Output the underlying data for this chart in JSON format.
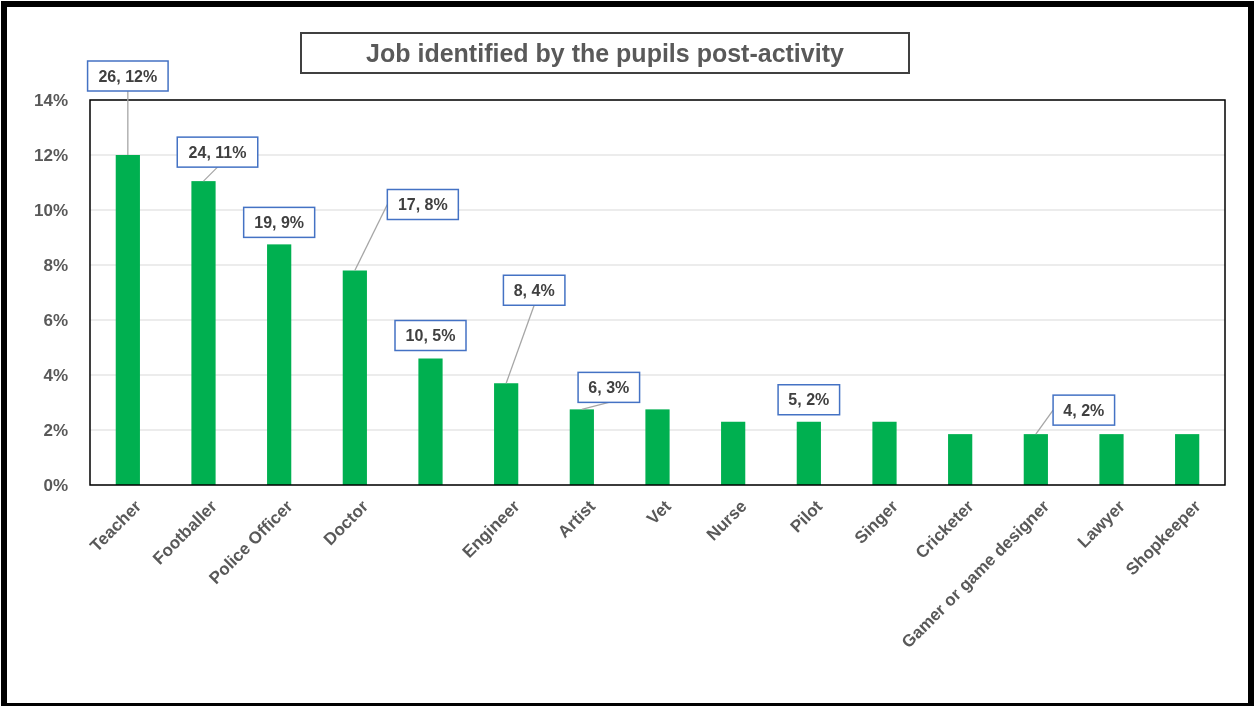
{
  "chart_data": {
    "type": "bar",
    "title": "Job identified by the pupils post-activity",
    "categories": [
      "Teacher",
      "Footballer",
      "Police Officer",
      "Doctor",
      null,
      "Engineer",
      "Artist",
      "Vet",
      "Nurse",
      "Pilot",
      "Singer",
      "Cricketer",
      "Gamer or game designer",
      "Lawyer",
      "Shopkeeper"
    ],
    "values": [
      12.0,
      11.05,
      8.75,
      7.8,
      4.6,
      3.7,
      2.75,
      2.75,
      2.3,
      2.3,
      2.3,
      1.85,
      1.85,
      1.85,
      1.85
    ],
    "value_labels": [
      "26, 12%",
      "24, 11%",
      "19, 9%",
      "17, 8%",
      "10, 5%",
      "8, 4%",
      "6, 3%",
      null,
      null,
      "5, 2%",
      null,
      null,
      "4, 2%",
      null,
      null
    ],
    "color": "#00b050",
    "ylim": [
      0,
      14
    ],
    "yticks": [
      {
        "value": 0,
        "label": "0%"
      },
      {
        "value": 2,
        "label": "2%"
      },
      {
        "value": 4,
        "label": "4%"
      },
      {
        "value": 6,
        "label": "6%"
      },
      {
        "value": 8,
        "label": "8%"
      },
      {
        "value": 10,
        "label": "10%"
      },
      {
        "value": 12,
        "label": "12%"
      },
      {
        "value": 14,
        "label": "14%"
      }
    ],
    "grid": "y"
  }
}
